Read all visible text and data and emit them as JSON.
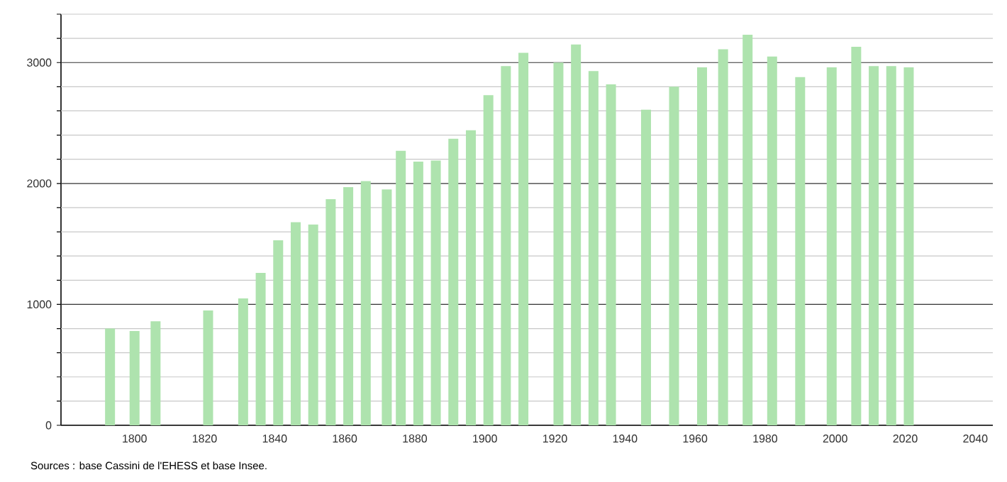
{
  "chart_data": {
    "type": "bar",
    "color": "#aee3ae",
    "x": [
      1793,
      1800,
      1806,
      1821,
      1831,
      1836,
      1841,
      1846,
      1851,
      1856,
      1861,
      1866,
      1872,
      1876,
      1881,
      1886,
      1891,
      1896,
      1901,
      1906,
      1911,
      1921,
      1926,
      1931,
      1936,
      1946,
      1954,
      1962,
      1968,
      1975,
      1982,
      1990,
      1999,
      2006,
      2011,
      2016,
      2021
    ],
    "values": [
      800,
      780,
      860,
      950,
      1050,
      1260,
      1530,
      1680,
      1660,
      1870,
      1970,
      2020,
      1950,
      2270,
      2180,
      2190,
      2370,
      2440,
      2730,
      2970,
      3080,
      3000,
      3150,
      2930,
      2820,
      2610,
      2800,
      2960,
      3110,
      3230,
      3050,
      2880,
      2960,
      3130,
      2970,
      2970,
      2960
    ],
    "xlim": [
      1779,
      2045
    ],
    "ylim": [
      0,
      3400
    ],
    "xticks": [
      1800,
      1820,
      1840,
      1860,
      1880,
      1900,
      1920,
      1940,
      1960,
      1980,
      2000,
      2020,
      2040
    ],
    "yticks": [
      0,
      {
        "value": 200,
        "label": null
      },
      {
        "value": 400,
        "label": null
      },
      {
        "value": 600,
        "label": null
      },
      {
        "value": 800,
        "label": null
      },
      1000,
      {
        "value": 1200,
        "label": null
      },
      {
        "value": 1400,
        "label": null
      },
      {
        "value": 1600,
        "label": null
      },
      {
        "value": 1800,
        "label": null
      },
      2000,
      {
        "value": 2200,
        "label": null
      },
      {
        "value": 2400,
        "label": null
      },
      {
        "value": 2600,
        "label": null
      },
      {
        "value": 2800,
        "label": null
      },
      3000,
      {
        "value": 3200,
        "label": null
      },
      {
        "value": 3400,
        "label": null
      }
    ],
    "grid": "y",
    "annotations": [
      "Sources : base Cassini de l'EHESS et base Insee."
    ]
  }
}
